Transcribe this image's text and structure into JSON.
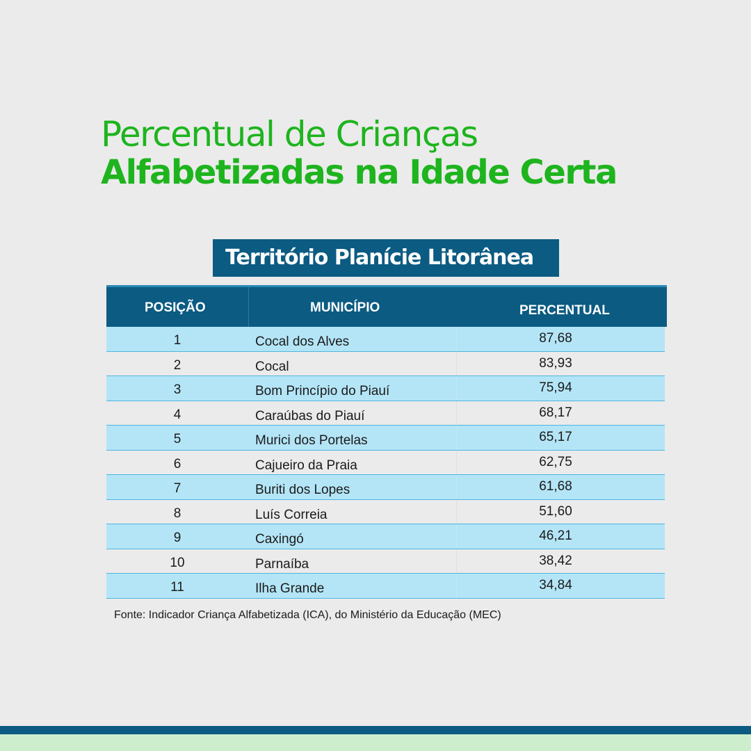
{
  "title": {
    "line1": "Percentual de Crianças",
    "line2": "Alfabetizadas na Idade Certa"
  },
  "territory": "Território Planície Litorânea",
  "table": {
    "headers": {
      "position": "POSIÇÃO",
      "municipality": "MUNICÍPIO",
      "percentage": "PERCENTUAL"
    },
    "rows": [
      {
        "position": "1",
        "municipality": "Cocal dos Alves",
        "percentage": "87,68"
      },
      {
        "position": "2",
        "municipality": "Cocal",
        "percentage": "83,93"
      },
      {
        "position": "3",
        "municipality": "Bom Princípio do Piauí",
        "percentage": "75,94"
      },
      {
        "position": "4",
        "municipality": "Caraúbas do Piauí",
        "percentage": "68,17"
      },
      {
        "position": "5",
        "municipality": "Murici dos Portelas",
        "percentage": "65,17"
      },
      {
        "position": "6",
        "municipality": "Cajueiro da Praia",
        "percentage": "62,75"
      },
      {
        "position": "7",
        "municipality": "Buriti dos Lopes",
        "percentage": "61,68"
      },
      {
        "position": "8",
        "municipality": "Luís Correia",
        "percentage": "51,60"
      },
      {
        "position": "9",
        "municipality": "Caxingó",
        "percentage": "46,21"
      },
      {
        "position": "10",
        "municipality": "Parnaíba",
        "percentage": "38,42"
      },
      {
        "position": "11",
        "municipality": "Ilha Grande",
        "percentage": "34,84"
      }
    ]
  },
  "source": "Fonte: Indicador Criança Alfabetizada (ICA), do Ministério da Educação (MEC)",
  "colors": {
    "title_green": "#1eb41e",
    "header_blue": "#0b5b82",
    "row_light_blue": "#b4e5f7",
    "background": "#ebebeb",
    "footer_green": "#cdeecd"
  }
}
